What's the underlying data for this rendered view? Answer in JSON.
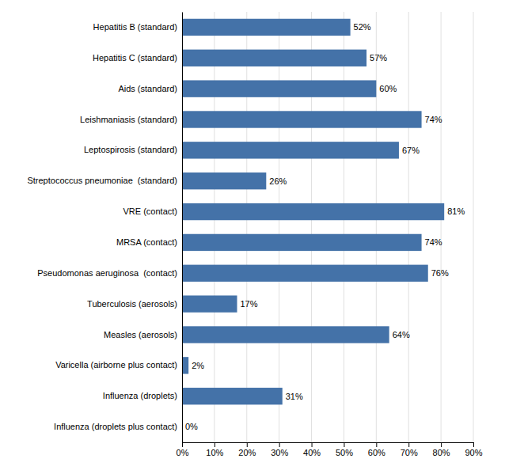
{
  "chart_data": {
    "type": "bar",
    "orientation": "horizontal",
    "categories": [
      "Influenza (droplets plus contact)",
      "Influenza (droplets)",
      "Varicella (airborne plus contact)",
      "Measles (aerosols)",
      "Tuberculosis (aerosols)",
      "Pseudomonas aeruginosa  (contact)",
      "MRSA (contact)",
      "VRE (contact)",
      "Streptococcus pneumoniae  (standard)",
      "Leptospirosis (standard)",
      "Leishmaniasis (standard)",
      "Aids (standard)",
      "Hepatitis C (standard)",
      "Hepatitis B (standard)"
    ],
    "values": [
      0,
      31,
      2,
      64,
      17,
      76,
      74,
      81,
      26,
      67,
      74,
      60,
      57,
      52
    ],
    "value_labels": [
      "0%",
      "31%",
      "2%",
      "64%",
      "17%",
      "76%",
      "74%",
      "81%",
      "26%",
      "67%",
      "74%",
      "60%",
      "57%",
      "52%"
    ],
    "data_labels": true,
    "color": "#4472a8",
    "xlim": [
      0,
      90
    ],
    "xticks": [
      {
        "value": 0,
        "label": "0%"
      },
      {
        "value": 10,
        "label": "10%"
      },
      {
        "value": 20,
        "label": "20%"
      },
      {
        "value": 30,
        "label": "30%"
      },
      {
        "value": 40,
        "label": "40%"
      },
      {
        "value": 50,
        "label": "50%"
      },
      {
        "value": 60,
        "label": "60%"
      },
      {
        "value": 70,
        "label": "70%"
      },
      {
        "value": 80,
        "label": "80%"
      },
      {
        "value": 90,
        "label": "90%"
      }
    ],
    "grid": true
  }
}
